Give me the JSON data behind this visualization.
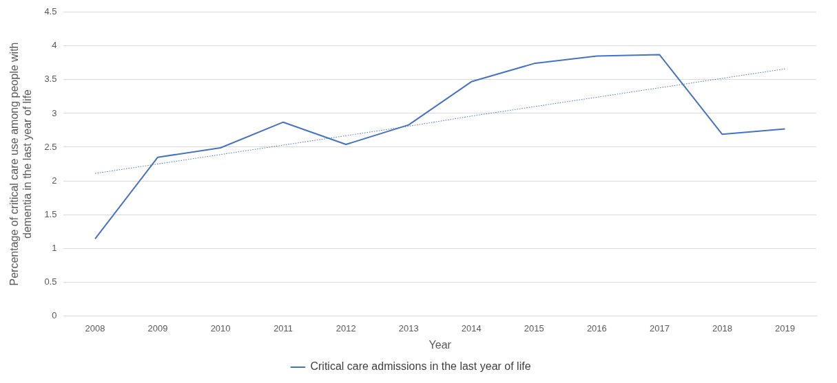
{
  "chart_data": {
    "type": "line",
    "xlabel": "Year",
    "ylabel": "Percentage of critical care use among people with\ndementia in the last year of life",
    "categories": [
      "2008",
      "2009",
      "2010",
      "2011",
      "2012",
      "2013",
      "2014",
      "2015",
      "2016",
      "2017",
      "2018",
      "2019"
    ],
    "series": [
      {
        "name": "Critical care admissions in the last year of life",
        "color": "#4472c4",
        "values": [
          1.14,
          2.35,
          2.49,
          2.87,
          2.54,
          2.83,
          3.47,
          3.74,
          3.85,
          3.87,
          2.69,
          2.77
        ]
      },
      {
        "type": "line",
        "color": "#4472c4",
        "values": [
          2.11,
          2.25,
          2.39,
          2.53,
          2.67,
          2.81,
          2.96,
          3.1,
          3.24,
          3.38,
          3.52,
          3.66
        ],
        "line_style": "dotted"
      }
    ],
    "ylim": [
      0,
      4.5
    ],
    "yticks": [
      0,
      0.5,
      1,
      1.5,
      2,
      2.5,
      3,
      3.5,
      4,
      4.5
    ],
    "grid": "y",
    "legend": "bottom",
    "marker": "none",
    "line_style": "solid"
  }
}
